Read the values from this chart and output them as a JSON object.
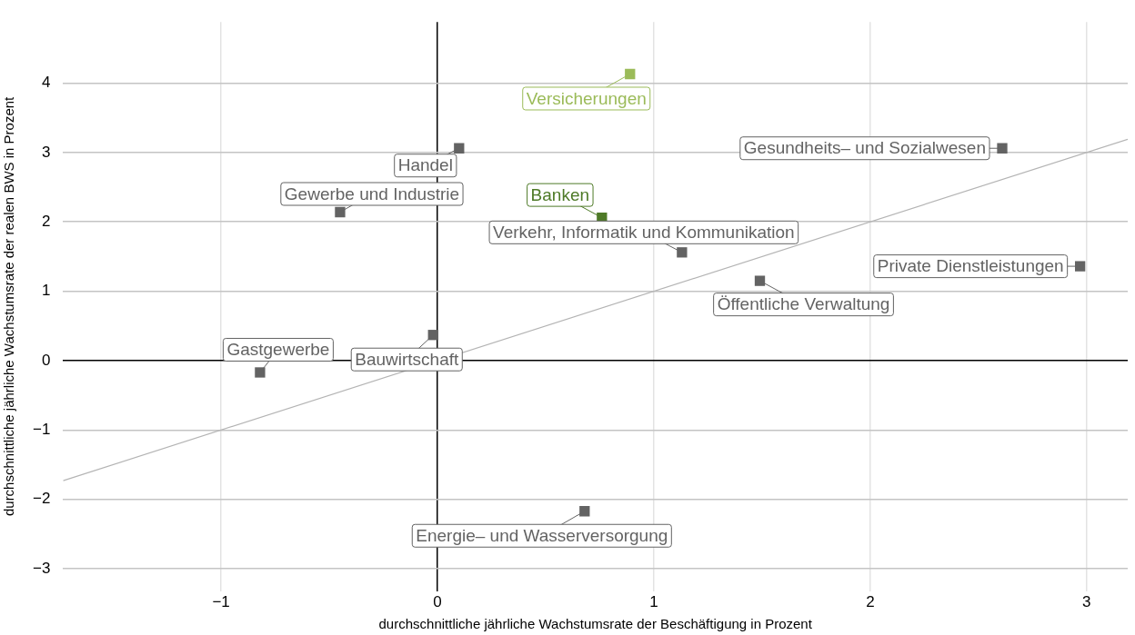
{
  "chart_data": {
    "type": "scatter",
    "xlabel": "durchschnittliche jährliche Wachstumsrate der Beschäftigung in Prozent",
    "ylabel": "durchschnittliche jährliche Wachstumsrate der realen BWS in Prozent",
    "xlim": [
      -1.73,
      3.19
    ],
    "ylim": [
      -3.32,
      4.88
    ],
    "xticks": [
      {
        "value": -1,
        "label": "−1"
      },
      0,
      1,
      2,
      3
    ],
    "yticks": [
      {
        "value": -3,
        "label": "−3"
      },
      {
        "value": -2,
        "label": "−2"
      },
      {
        "value": -1,
        "label": "−1"
      },
      0,
      1,
      2,
      3,
      4
    ],
    "grid": true,
    "legend": false,
    "marker": "square",
    "series": [
      {
        "color": "#636363",
        "x": [
          0.1,
          2.61,
          -0.45,
          1.13,
          2.97,
          1.49,
          -0.02,
          -0.82,
          0.68
        ],
        "values": [
          3.06,
          3.06,
          2.14,
          1.56,
          1.36,
          1.15,
          0.37,
          -0.17,
          -2.17
        ],
        "value_labels": [
          "Handel",
          "Gesundheits– und Sozialwesen",
          "Gewerbe und Industrie",
          "Verkehr, Informatik und Kommunikation",
          "Private Dienstleistungen",
          "Öffentliche Verwaltung",
          "Bauwirtschaft",
          "Gastgewerbe",
          "Energie– und Wasserversorgung"
        ]
      },
      {
        "color": "#4e7a27",
        "x": [
          0.76
        ],
        "values": [
          2.06
        ],
        "value_labels": [
          "Banken"
        ]
      },
      {
        "color": "#9bbb59",
        "x": [
          0.89
        ],
        "values": [
          4.13
        ],
        "value_labels": [
          "Versicherungen"
        ]
      },
      {
        "type": "line",
        "color": "#b4b4b4",
        "marker": "none",
        "x": [
          -1.73,
          3.19
        ],
        "values": [
          -1.73,
          3.19
        ]
      }
    ]
  }
}
